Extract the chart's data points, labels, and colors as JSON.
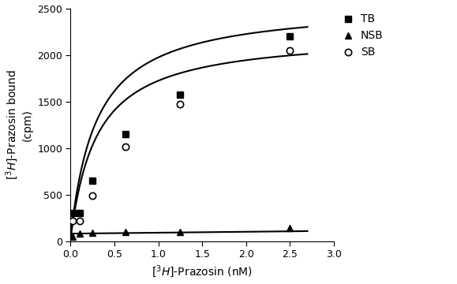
{
  "TB_x": [
    0.025,
    0.1,
    0.25,
    0.625,
    1.25,
    2.5
  ],
  "TB_y": [
    300,
    300,
    650,
    1150,
    1575,
    2200
  ],
  "NSB_x": [
    0.025,
    0.1,
    0.25,
    0.625,
    1.25,
    2.5
  ],
  "NSB_y": [
    50,
    80,
    90,
    95,
    100,
    140
  ],
  "SB_x": [
    0.025,
    0.1,
    0.25,
    0.625,
    1.25,
    2.5
  ],
  "SB_y": [
    215,
    220,
    490,
    1010,
    1475,
    2050
  ],
  "xlabel": "$[^{3}H]$-Prazosin (nM)",
  "ylabel": "$[^{3}H]$-Prazosin bound\n(cpm)",
  "xlim": [
    0,
    3.0
  ],
  "ylim": [
    0,
    2500
  ],
  "xticks": [
    0.0,
    0.5,
    1.0,
    1.5,
    2.0,
    2.5,
    3.0
  ],
  "yticks": [
    0,
    500,
    1000,
    1500,
    2000,
    2500
  ],
  "legend_labels": [
    "TB",
    "NSB",
    "SB"
  ],
  "line_color": "#000000",
  "marker_color": "#000000",
  "background_color": "#ffffff",
  "figwidth": 5.79,
  "figheight": 3.6,
  "dpi": 100
}
